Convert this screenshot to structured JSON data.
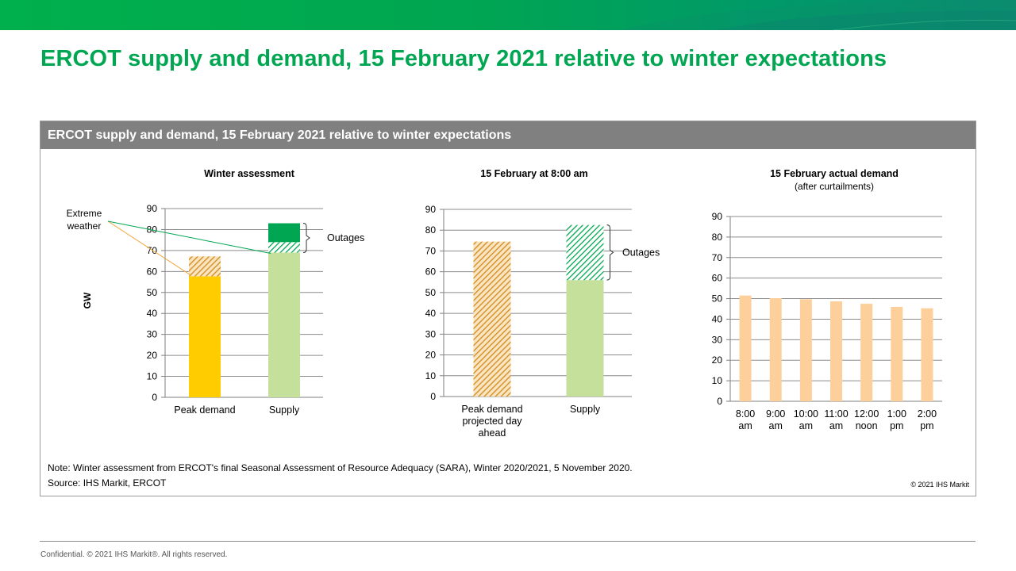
{
  "slide": {
    "title": "ERCOT supply and demand, 15 February 2021 relative to winter expectations",
    "footer": "Confidential. © 2021 IHS Markit®. All rights reserved."
  },
  "panel": {
    "header": "ERCOT supply and demand, 15 February 2021 relative to winter expectations",
    "note": "Note: Winter assessment from ERCOT's final Seasonal Assessment of Resource Adequacy (SARA), Winter 2020/2021, 5 November 2020.",
    "source": "Source: IHS Markit, ERCOT",
    "copyright": "© 2021 IHS Markit"
  },
  "colors": {
    "brand_green": "#00a651",
    "header_gray": "#808080",
    "peak_yellow": "#ffcc00",
    "hatch_orange": "#d08a1c",
    "supply_light_green": "#c5e09b",
    "outage_green": "#00a651",
    "actual_peach": "#fdd09b"
  },
  "chart_data": [
    {
      "type": "bar",
      "stacked": true,
      "title": "Winter assessment",
      "ylabel": "GW",
      "ylim": [
        0,
        90
      ],
      "yticks": [
        0,
        10,
        20,
        30,
        40,
        50,
        60,
        70,
        80,
        90
      ],
      "categories": [
        "Peak demand",
        "Supply"
      ],
      "segments": [
        {
          "category": "Peak demand",
          "label": "",
          "from": 0,
          "to": 57.7,
          "style": "solid-yellow"
        },
        {
          "category": "Peak demand",
          "label": "Extreme weather",
          "from": 57.7,
          "to": 67.2,
          "style": "hatch-orange"
        },
        {
          "category": "Supply",
          "label": "",
          "from": 0,
          "to": 69,
          "style": "solid-light-green"
        },
        {
          "category": "Supply",
          "label": "Extreme weather",
          "from": 69,
          "to": 74,
          "style": "hatch-green"
        },
        {
          "category": "Supply",
          "label": "",
          "from": 74,
          "to": 83,
          "style": "solid-green"
        }
      ],
      "annotations": [
        {
          "text": "Extreme weather"
        },
        {
          "text": "Outages",
          "bracket": [
            69,
            83
          ]
        }
      ]
    },
    {
      "type": "bar",
      "stacked": true,
      "title": "15 February at 8:00 am",
      "ylim": [
        0,
        90
      ],
      "yticks": [
        0,
        10,
        20,
        30,
        40,
        50,
        60,
        70,
        80,
        90
      ],
      "categories": [
        "Peak demand projected day ahead",
        "Supply"
      ],
      "category_lines": [
        [
          "Peak demand",
          "projected day",
          "ahead"
        ],
        [
          "Supply"
        ]
      ],
      "segments": [
        {
          "category": "Peak demand projected day ahead",
          "label": "",
          "from": 0,
          "to": 74.5,
          "style": "hatch-orange"
        },
        {
          "category": "Supply",
          "label": "",
          "from": 0,
          "to": 56,
          "style": "solid-light-green"
        },
        {
          "category": "Supply",
          "label": "Outages",
          "from": 56,
          "to": 82.5,
          "style": "hatch-green"
        }
      ],
      "annotations": [
        {
          "text": "Outages",
          "bracket": [
            56,
            82.5
          ]
        }
      ]
    },
    {
      "type": "bar",
      "title": "15 February actual demand",
      "subtitle": "(after curtailments)",
      "ylim": [
        0,
        90
      ],
      "yticks": [
        0,
        10,
        20,
        30,
        40,
        50,
        60,
        70,
        80,
        90
      ],
      "categories": [
        "8:00 am",
        "9:00 am",
        "10:00 am",
        "11:00 am",
        "12:00 noon",
        "1:00 pm",
        "2:00 pm"
      ],
      "category_lines": [
        [
          "8:00",
          "am"
        ],
        [
          "9:00",
          "am"
        ],
        [
          "10:00",
          "am"
        ],
        [
          "11:00",
          "am"
        ],
        [
          "12:00",
          "noon"
        ],
        [
          "1:00",
          "pm"
        ],
        [
          "2:00",
          "pm"
        ]
      ],
      "values": [
        51.5,
        50.2,
        49.7,
        48.7,
        47.5,
        46.0,
        45.3
      ]
    }
  ]
}
